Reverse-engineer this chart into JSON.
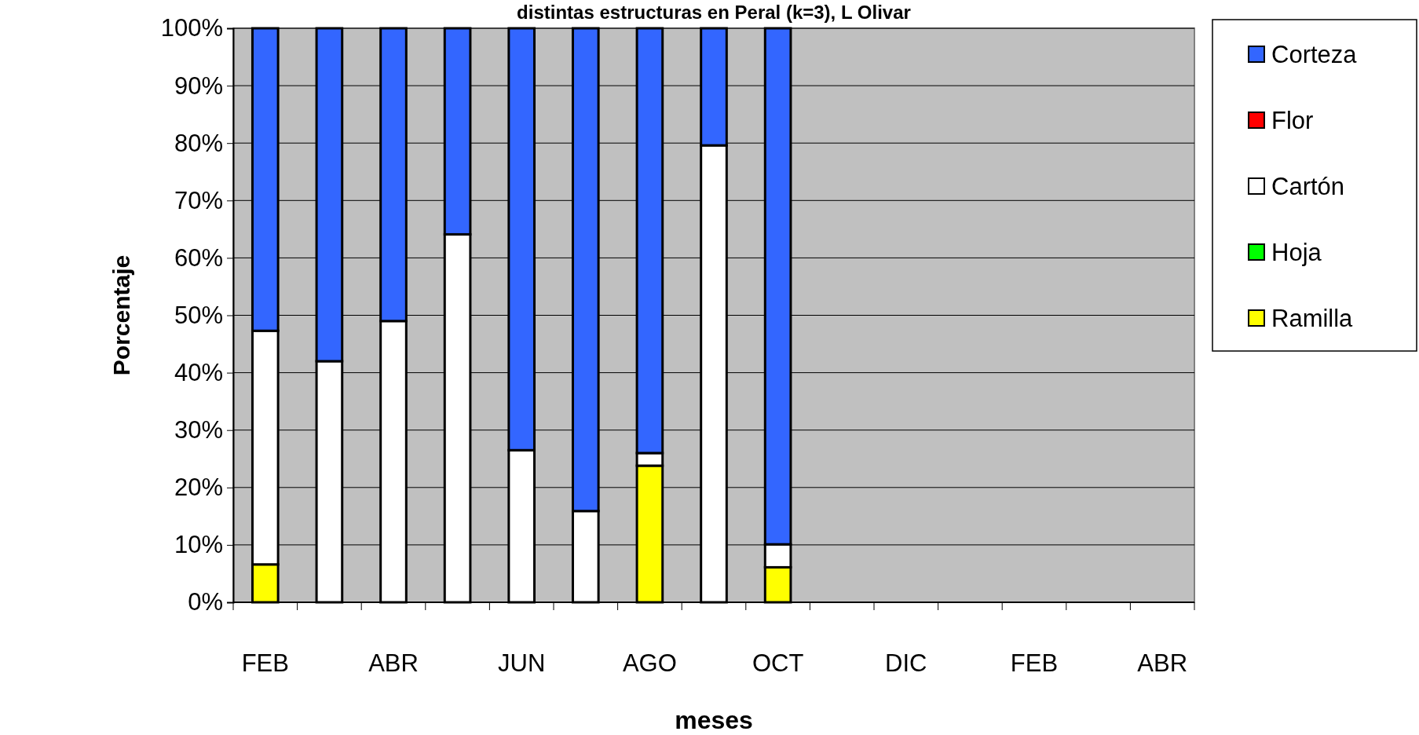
{
  "chart_data": {
    "type": "bar",
    "stacked": true,
    "title": "distintas estructuras en Peral (k=3), L Olivar",
    "xlabel": "meses",
    "ylabel": "Porcentaje",
    "categories": [
      "FEB",
      null,
      "ABR",
      null,
      "JUN",
      null,
      "AGO",
      null,
      "OCT",
      null,
      "DIC",
      null,
      "FEB",
      null,
      "ABR"
    ],
    "series": [
      {
        "name": "Ramilla",
        "color": "#ffff00",
        "values": [
          6.6,
          0,
          0,
          0,
          0,
          0,
          23.8,
          0,
          6.1,
          null,
          null,
          null,
          null,
          null,
          null
        ]
      },
      {
        "name": "Hoja",
        "color": "#00ff00",
        "values": [
          0,
          0,
          0,
          0,
          0,
          0,
          0,
          0,
          0,
          null,
          null,
          null,
          null,
          null,
          null
        ]
      },
      {
        "name": "Cartón",
        "color": "#ffffff",
        "values": [
          40.7,
          42,
          49,
          64.1,
          26.5,
          15.9,
          2.2,
          79.6,
          4.0,
          null,
          null,
          null,
          null,
          null,
          null
        ]
      },
      {
        "name": "Flor",
        "color": "#ff0000",
        "values": [
          0,
          0,
          0,
          0,
          0,
          0,
          0,
          0,
          0,
          null,
          null,
          null,
          null,
          null,
          null
        ]
      },
      {
        "name": "Corteza",
        "color": "#3366ff",
        "values": [
          52.7,
          58,
          51,
          35.9,
          73.5,
          84.1,
          74,
          20.4,
          89.9,
          null,
          null,
          null,
          null,
          null,
          null
        ]
      }
    ],
    "ylim": [
      0,
      100
    ],
    "yticks": [
      {
        "value": 0,
        "label": "0%"
      },
      {
        "value": 10,
        "label": "10%"
      },
      {
        "value": 20,
        "label": "20%"
      },
      {
        "value": 30,
        "label": "30%"
      },
      {
        "value": 40,
        "label": "40%"
      },
      {
        "value": 50,
        "label": "50%"
      },
      {
        "value": 60,
        "label": "60%"
      },
      {
        "value": 70,
        "label": "70%"
      },
      {
        "value": 80,
        "label": "80%"
      },
      {
        "value": 90,
        "label": "90%"
      },
      {
        "value": 100,
        "label": "100%"
      }
    ],
    "grid": "y",
    "legend": "right"
  }
}
